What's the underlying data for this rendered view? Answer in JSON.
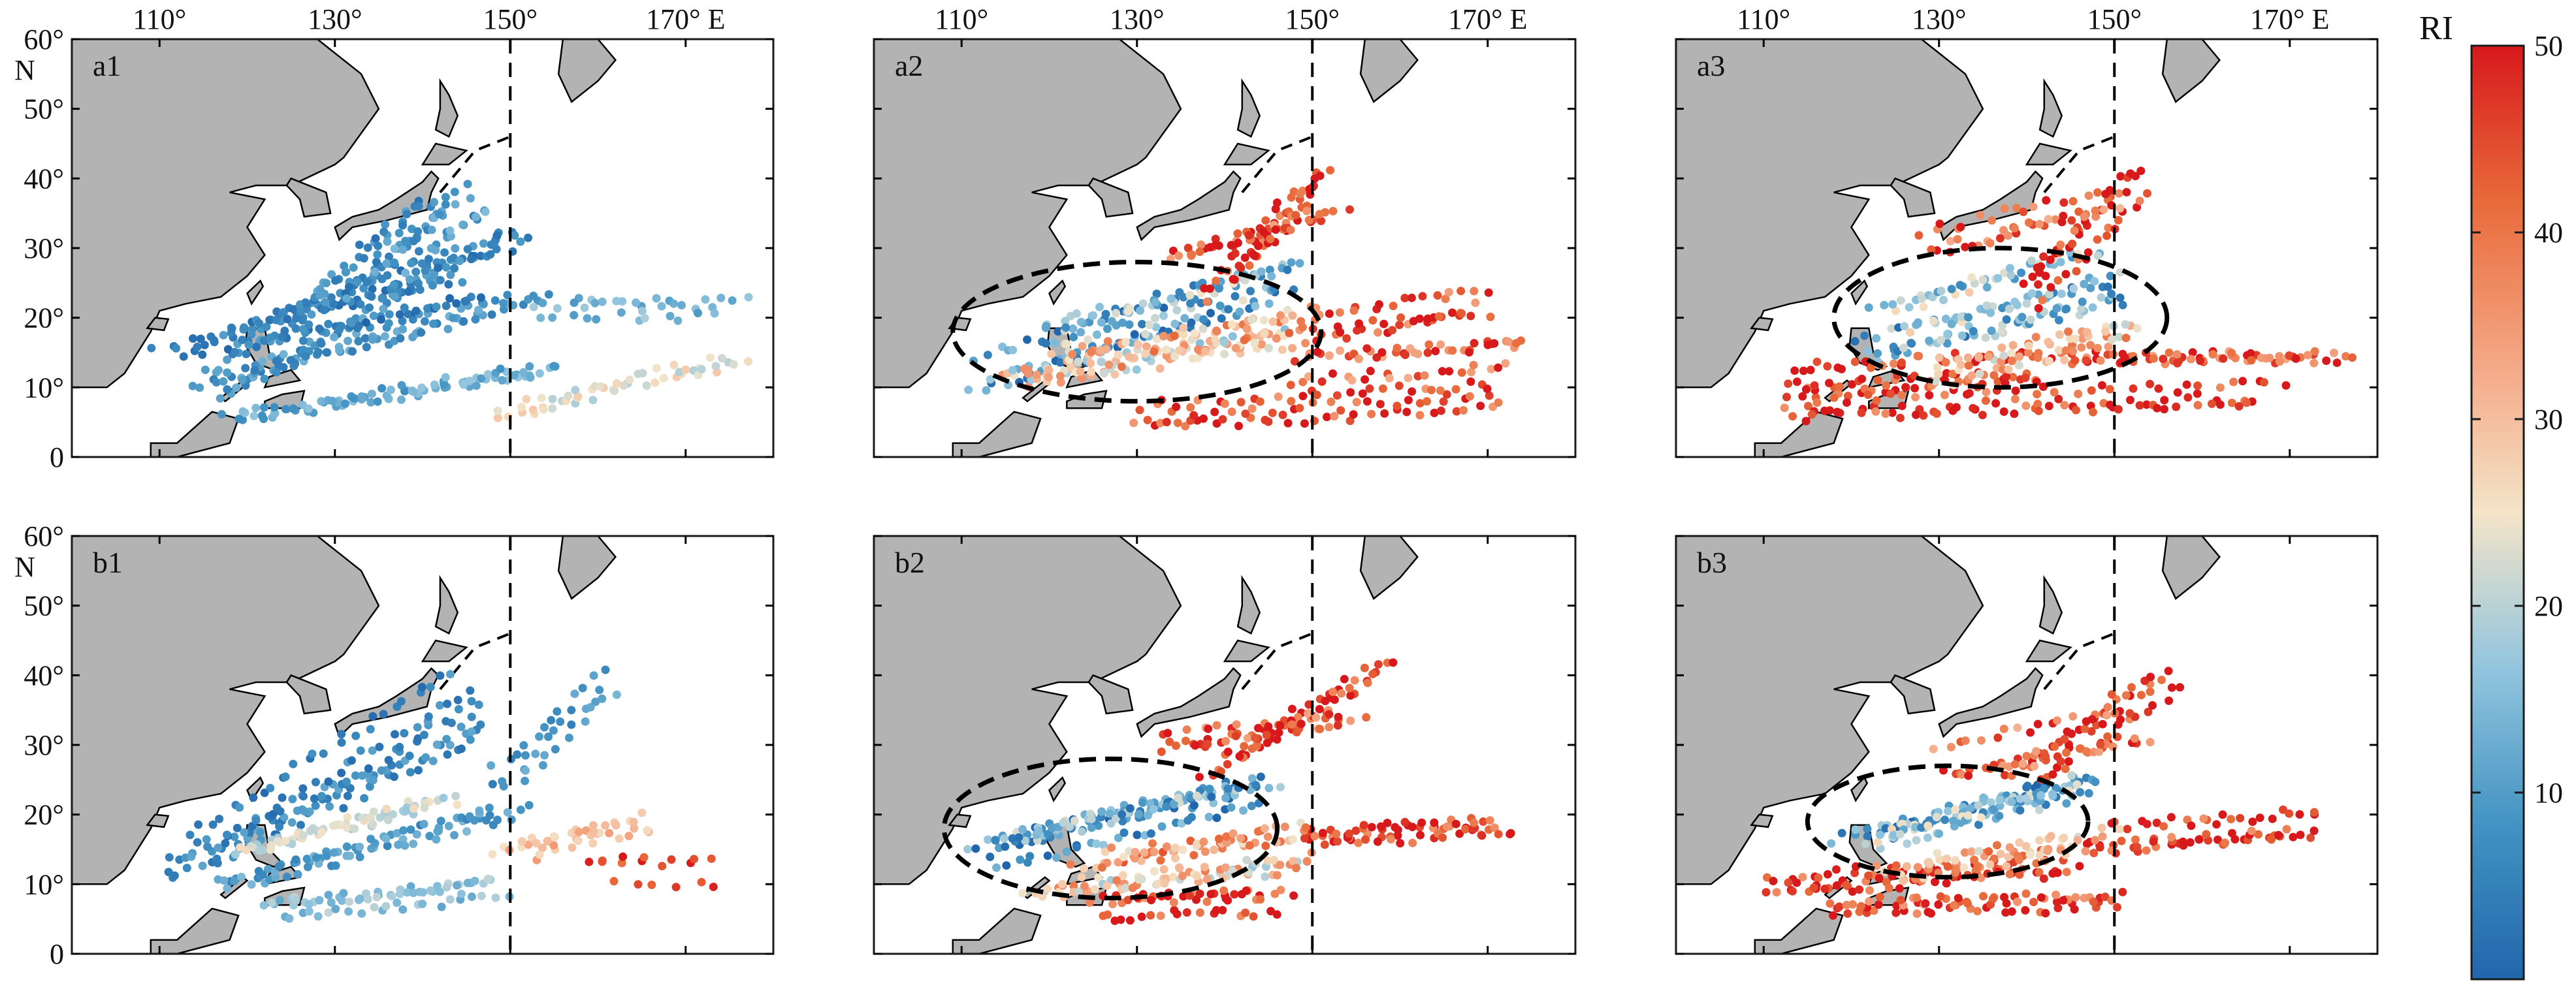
{
  "chart_data": {
    "type": "scatter",
    "x_axis": {
      "ticks": [
        110,
        130,
        150,
        170
      ],
      "tick_labels": [
        "110°",
        "130°",
        "150°",
        "170° E"
      ],
      "xlim": [
        100,
        180
      ]
    },
    "y_axis": {
      "ticks": [
        0,
        10,
        20,
        30,
        40,
        50,
        60
      ],
      "tick_labels": [
        "0",
        "10°",
        "20°",
        "30°",
        "40°",
        "50°",
        "60°"
      ],
      "unit_label": "N",
      "ylim": [
        0,
        60
      ]
    },
    "reference_line": {
      "lon": 150,
      "style": "dashed"
    },
    "colorbar": {
      "title": "RI",
      "range": [
        0,
        50
      ],
      "ticks": [
        10,
        20,
        30,
        40,
        50
      ],
      "tick_labels": [
        "10",
        "20",
        "30",
        "40",
        "50"
      ],
      "colors": [
        "#2166ac",
        "#4393c3",
        "#92c5de",
        "#f4e4c8",
        "#f4a582",
        "#e86a3a",
        "#d7191c"
      ]
    },
    "panels": [
      {
        "label": "a1",
        "row": 0,
        "col": 0,
        "ellipse": null,
        "mode": "lowRI",
        "tracks": [
          {
            "lon0": 116,
            "lat0": 11,
            "lon1": 148,
            "lat1": 34,
            "n": 28,
            "ri": 8
          },
          {
            "lon0": 112,
            "lat0": 14,
            "lon1": 150,
            "lat1": 30,
            "n": 30,
            "ri": 6
          },
          {
            "lon0": 115,
            "lat0": 10,
            "lon1": 152,
            "lat1": 22,
            "n": 30,
            "ri": 9
          },
          {
            "lon0": 118,
            "lat0": 17,
            "lon1": 145,
            "lat1": 24,
            "n": 26,
            "ri": 5
          },
          {
            "lon0": 120,
            "lat0": 8,
            "lon1": 155,
            "lat1": 15,
            "n": 30,
            "ri": 12
          },
          {
            "lon0": 125,
            "lat0": 20,
            "lon1": 140,
            "lat1": 36,
            "n": 20,
            "ri": 7
          },
          {
            "lon0": 135,
            "lat0": 26,
            "lon1": 146,
            "lat1": 38,
            "n": 14,
            "ri": 10
          },
          {
            "lon0": 150,
            "lat0": 7,
            "lon1": 175,
            "lat1": 14,
            "n": 18,
            "ri": 24
          },
          {
            "lon0": 155,
            "lat0": 22,
            "lon1": 175,
            "lat1": 22,
            "n": 12,
            "ri": 14
          }
        ]
      },
      {
        "label": "a2",
        "row": 0,
        "col": 1,
        "ellipse": {
          "cx": 130,
          "cy": 18,
          "rx": 21,
          "ry": 10
        },
        "mode": "mixed",
        "tracks": [
          {
            "lon0": 113,
            "lat0": 12,
            "lon1": 145,
            "lat1": 24,
            "n": 30,
            "ri": 8
          },
          {
            "lon0": 118,
            "lat0": 18,
            "lon1": 146,
            "lat1": 27,
            "n": 28,
            "ri": 14
          },
          {
            "lon0": 116,
            "lat0": 10,
            "lon1": 148,
            "lat1": 16,
            "n": 30,
            "ri": 26
          },
          {
            "lon0": 130,
            "lat0": 6,
            "lon1": 170,
            "lat1": 9,
            "n": 30,
            "ri": 46
          },
          {
            "lon0": 140,
            "lat0": 25,
            "lon1": 150,
            "lat1": 40,
            "n": 18,
            "ri": 47
          },
          {
            "lon0": 135,
            "lat0": 30,
            "lon1": 152,
            "lat1": 36,
            "n": 16,
            "ri": 44
          },
          {
            "lon0": 150,
            "lat0": 12,
            "lon1": 175,
            "lat1": 14,
            "n": 22,
            "ri": 42
          },
          {
            "lon0": 148,
            "lat0": 18,
            "lon1": 168,
            "lat1": 22,
            "n": 18,
            "ri": 45
          },
          {
            "lon0": 122,
            "lat0": 14,
            "lon1": 150,
            "lat1": 20,
            "n": 26,
            "ri": 32
          }
        ]
      },
      {
        "label": "a3",
        "row": 0,
        "col": 2,
        "ellipse": {
          "cx": 137,
          "cy": 20,
          "rx": 19,
          "ry": 10
        },
        "mode": "mixed",
        "tracks": [
          {
            "lon0": 122,
            "lat0": 16,
            "lon1": 150,
            "lat1": 24,
            "n": 28,
            "ri": 12
          },
          {
            "lon0": 125,
            "lat0": 20,
            "lon1": 148,
            "lat1": 28,
            "n": 24,
            "ri": 18
          },
          {
            "lon0": 112,
            "lat0": 11,
            "lon1": 140,
            "lat1": 13,
            "n": 28,
            "ri": 47
          },
          {
            "lon0": 115,
            "lat0": 8,
            "lon1": 168,
            "lat1": 10,
            "n": 34,
            "ri": 46
          },
          {
            "lon0": 140,
            "lat0": 24,
            "lon1": 152,
            "lat1": 40,
            "n": 18,
            "ri": 48
          },
          {
            "lon0": 145,
            "lat0": 14,
            "lon1": 175,
            "lat1": 14,
            "n": 24,
            "ri": 44
          },
          {
            "lon0": 130,
            "lat0": 30,
            "lon1": 150,
            "lat1": 36,
            "n": 16,
            "ri": 42
          },
          {
            "lon0": 128,
            "lat0": 12,
            "lon1": 150,
            "lat1": 18,
            "n": 24,
            "ri": 30
          }
        ]
      },
      {
        "label": "b1",
        "row": 1,
        "col": 0,
        "ellipse": null,
        "mode": "lowRI",
        "tracks": [
          {
            "lon0": 113,
            "lat0": 12,
            "lon1": 148,
            "lat1": 32,
            "n": 30,
            "ri": 7
          },
          {
            "lon0": 115,
            "lat0": 15,
            "lon1": 145,
            "lat1": 38,
            "n": 28,
            "ri": 6
          },
          {
            "lon0": 118,
            "lat0": 9,
            "lon1": 150,
            "lat1": 20,
            "n": 30,
            "ri": 10
          },
          {
            "lon0": 120,
            "lat0": 17,
            "lon1": 142,
            "lat1": 24,
            "n": 24,
            "ri": 22
          },
          {
            "lon0": 125,
            "lat0": 7,
            "lon1": 150,
            "lat1": 10,
            "n": 24,
            "ri": 16
          },
          {
            "lon0": 150,
            "lat0": 15,
            "lon1": 164,
            "lat1": 19,
            "n": 14,
            "ri": 30
          },
          {
            "lon0": 150,
            "lat0": 26,
            "lon1": 162,
            "lat1": 40,
            "n": 12,
            "ri": 9
          },
          {
            "lon0": 160,
            "lat0": 11,
            "lon1": 172,
            "lat1": 11,
            "n": 6,
            "ri": 46
          }
        ]
      },
      {
        "label": "b2",
        "row": 1,
        "col": 1,
        "ellipse": {
          "cx": 127,
          "cy": 18,
          "rx": 19,
          "ry": 10
        },
        "mode": "mixed",
        "tracks": [
          {
            "lon0": 112,
            "lat0": 13,
            "lon1": 142,
            "lat1": 22,
            "n": 30,
            "ri": 7
          },
          {
            "lon0": 116,
            "lat0": 18,
            "lon1": 145,
            "lat1": 26,
            "n": 28,
            "ri": 12
          },
          {
            "lon0": 118,
            "lat0": 10,
            "lon1": 148,
            "lat1": 14,
            "n": 28,
            "ri": 28
          },
          {
            "lon0": 125,
            "lat0": 6,
            "lon1": 145,
            "lat1": 7,
            "n": 20,
            "ri": 46
          },
          {
            "lon0": 140,
            "lat0": 26,
            "lon1": 158,
            "lat1": 40,
            "n": 20,
            "ri": 48
          },
          {
            "lon0": 150,
            "lat0": 16,
            "lon1": 172,
            "lat1": 18,
            "n": 24,
            "ri": 47
          },
          {
            "lon0": 135,
            "lat0": 30,
            "lon1": 155,
            "lat1": 34,
            "n": 18,
            "ri": 44
          },
          {
            "lon0": 125,
            "lat0": 14,
            "lon1": 148,
            "lat1": 18,
            "n": 22,
            "ri": 34
          }
        ]
      },
      {
        "label": "b3",
        "row": 1,
        "col": 2,
        "ellipse": {
          "cx": 131,
          "cy": 19,
          "rx": 16,
          "ry": 8
        },
        "mode": "mixed",
        "tracks": [
          {
            "lon0": 120,
            "lat0": 15,
            "lon1": 145,
            "lat1": 23,
            "n": 26,
            "ri": 10
          },
          {
            "lon0": 124,
            "lat0": 19,
            "lon1": 146,
            "lat1": 26,
            "n": 22,
            "ri": 16
          },
          {
            "lon0": 112,
            "lat0": 9,
            "lon1": 145,
            "lat1": 12,
            "n": 30,
            "ri": 46
          },
          {
            "lon0": 118,
            "lat0": 6,
            "lon1": 150,
            "lat1": 7,
            "n": 26,
            "ri": 45
          },
          {
            "lon0": 140,
            "lat0": 26,
            "lon1": 156,
            "lat1": 40,
            "n": 20,
            "ri": 48
          },
          {
            "lon0": 148,
            "lat0": 16,
            "lon1": 172,
            "lat1": 18,
            "n": 24,
            "ri": 47
          },
          {
            "lon0": 130,
            "lat0": 28,
            "lon1": 152,
            "lat1": 33,
            "n": 18,
            "ri": 42
          },
          {
            "lon0": 126,
            "lat0": 13,
            "lon1": 148,
            "lat1": 17,
            "n": 22,
            "ri": 33
          }
        ]
      }
    ]
  },
  "colors": {
    "land": "#b3b3b3",
    "ocean": "#ffffff",
    "frame": "#1a1a1a",
    "coast": "#000000"
  }
}
